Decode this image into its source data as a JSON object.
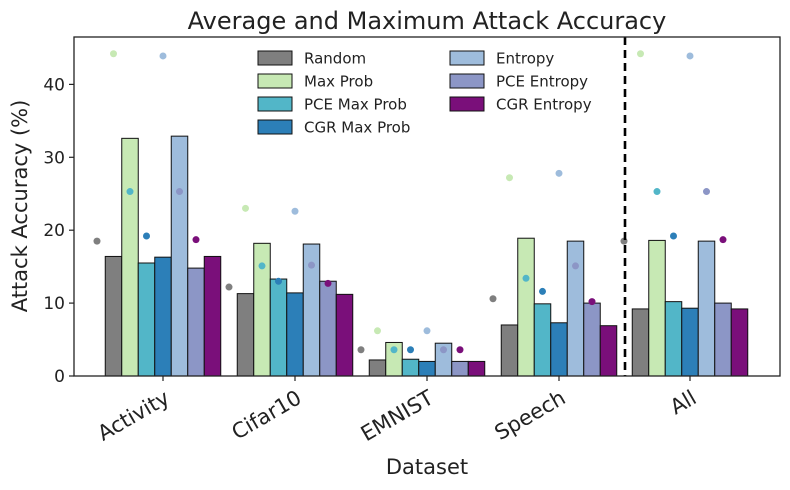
{
  "chart_data": {
    "type": "bar",
    "title": "Average and Maximum Attack Accuracy",
    "xlabel": "Dataset",
    "ylabel": "Attack Accuracy (%)",
    "ylim": [
      0,
      46.5
    ],
    "yticks": [
      0,
      10,
      20,
      30,
      40
    ],
    "categories": [
      "Activity",
      "Cifar10",
      "EMNIST",
      "Speech",
      "All"
    ],
    "legend_location": "top-center, two columns",
    "divider": "dashed vertical line between Speech and All",
    "series": [
      {
        "name": "Random",
        "color": "#7f7f7f",
        "values": [
          16.4,
          11.3,
          2.2,
          7.0,
          9.2
        ],
        "max": [
          18.5,
          12.2,
          3.6,
          10.6,
          18.5
        ]
      },
      {
        "name": "Max Prob",
        "color": "#c7e9b4",
        "values": [
          32.6,
          18.2,
          4.6,
          18.9,
          18.6
        ],
        "max": [
          44.2,
          23.0,
          6.2,
          27.2,
          44.2
        ]
      },
      {
        "name": "PCE Max Prob",
        "color": "#52b6c8",
        "values": [
          15.5,
          13.3,
          2.3,
          9.9,
          10.2
        ],
        "max": [
          25.3,
          15.1,
          3.6,
          13.4,
          25.3
        ]
      },
      {
        "name": "CGR Max Prob",
        "color": "#2c7fb8",
        "values": [
          16.3,
          11.4,
          2.0,
          7.3,
          9.3
        ],
        "max": [
          19.2,
          13.0,
          3.6,
          11.6,
          19.2
        ]
      },
      {
        "name": "Entropy",
        "color": "#9ebcdc",
        "values": [
          32.9,
          18.1,
          4.5,
          18.5,
          18.5
        ],
        "max": [
          43.9,
          22.6,
          6.2,
          27.8,
          43.9
        ]
      },
      {
        "name": "PCE Entropy",
        "color": "#8c96c6",
        "values": [
          14.8,
          13.0,
          2.0,
          10.0,
          10.0
        ],
        "max": [
          25.3,
          15.2,
          3.6,
          15.1,
          25.3
        ]
      },
      {
        "name": "CGR Entropy",
        "color": "#7a0f7a",
        "values": [
          16.4,
          11.2,
          2.0,
          6.9,
          9.2
        ],
        "max": [
          18.7,
          12.7,
          3.6,
          10.2,
          18.7
        ]
      }
    ]
  }
}
